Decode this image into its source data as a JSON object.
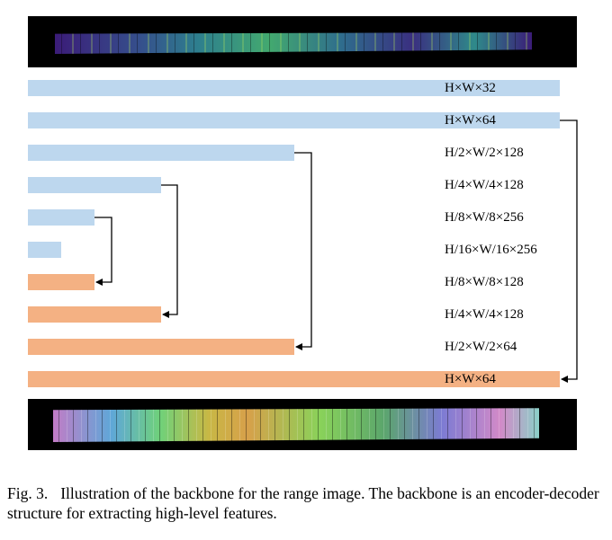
{
  "diagram": {
    "layers": [
      {
        "kind": "encoder",
        "label": "H×W×32",
        "width_fraction": 1.0
      },
      {
        "kind": "encoder",
        "label": "H×W×64",
        "width_fraction": 1.0
      },
      {
        "kind": "encoder",
        "label": "H/2×W/2×128",
        "width_fraction": 0.5
      },
      {
        "kind": "encoder",
        "label": "H/4×W/4×128",
        "width_fraction": 0.25
      },
      {
        "kind": "encoder",
        "label": "H/8×W/8×256",
        "width_fraction": 0.125
      },
      {
        "kind": "encoder",
        "label": "H/16×W/16×256",
        "width_fraction": 0.0625
      },
      {
        "kind": "decoder",
        "label": "H/8×W/8×128",
        "width_fraction": 0.125
      },
      {
        "kind": "decoder",
        "label": "H/4×W/4×128",
        "width_fraction": 0.25
      },
      {
        "kind": "decoder",
        "label": "H/2×W/2×64",
        "width_fraction": 0.5
      },
      {
        "kind": "decoder",
        "label": "H×W×64",
        "width_fraction": 1.0
      }
    ],
    "skip_connections": [
      {
        "from": 1,
        "to": 9
      },
      {
        "from": 2,
        "to": 8
      },
      {
        "from": 3,
        "to": 7
      },
      {
        "from": 4,
        "to": 6
      }
    ],
    "colors": {
      "encoder": "#bdd7ee",
      "decoder": "#f4b183",
      "connector": "#000000"
    },
    "input_image": "range-image-input",
    "output_image": "range-image-features"
  },
  "caption": {
    "figure_number": "Fig. 3.",
    "text": "Illustration of the backbone for the range image. The backbone is an encoder-decoder structure for extracting high-level features."
  }
}
